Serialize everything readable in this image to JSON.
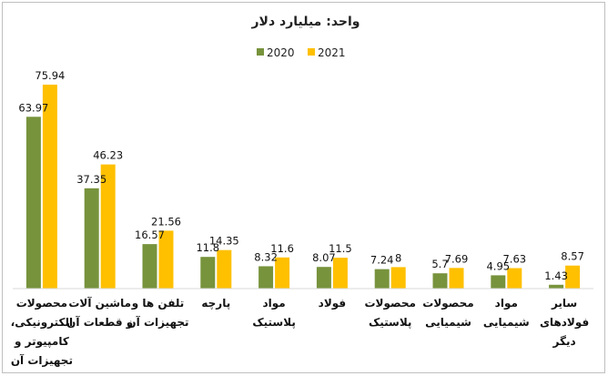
{
  "chart_data": {
    "type": "bar",
    "title": "واحد: میلیارد دلار",
    "xlabel": "",
    "ylabel": "",
    "ylim": [
      0,
      80
    ],
    "grid": false,
    "legend_position": "top",
    "categories": [
      [
        "محصولات",
        "الکترونیکی،",
        "کامپیوتر و",
        "تجهیزات آن"
      ],
      [
        "ماشین آلات",
        "و قطعات آن"
      ],
      [
        "تلفن ها و",
        "تجهیزات آن"
      ],
      [
        "پارچه"
      ],
      [
        "مواد",
        "پلاستیک"
      ],
      [
        "فولاد"
      ],
      [
        "محصولات",
        "پلاستیک"
      ],
      [
        "محصولات",
        "شیمیایی"
      ],
      [
        "مواد",
        "شیمیایی"
      ],
      [
        "سایر",
        "فولادهای",
        "دیگر"
      ]
    ],
    "series": [
      {
        "name": "2020",
        "color": "#77933c",
        "values": [
          63.97,
          37.35,
          16.57,
          11.8,
          8.32,
          8.07,
          7.24,
          5.7,
          4.95,
          1.43
        ],
        "labels": [
          "63.97",
          "37.35",
          "16.57",
          "11.8",
          "8.32",
          "8.07",
          "7.24",
          "5.7",
          "4.95",
          "1.43"
        ]
      },
      {
        "name": "2021",
        "color": "#ffc000",
        "values": [
          75.94,
          46.23,
          21.56,
          14.35,
          11.6,
          11.5,
          8,
          7.69,
          7.63,
          8.57
        ],
        "labels": [
          "75.94",
          "46.23",
          "21.56",
          "14.35",
          "11.6",
          "11.5",
          "8",
          "7.69",
          "7.63",
          "8.57"
        ]
      }
    ]
  }
}
